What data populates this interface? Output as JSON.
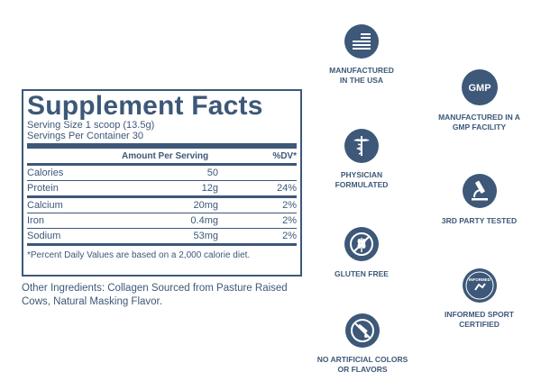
{
  "facts": {
    "title": "Supplement Facts",
    "serving_size": "Serving Size 1 scoop (13.5g)",
    "servings_per_container": "Servings Per Container 30",
    "header_amount": "Amount Per Serving",
    "header_dv": "%DV*",
    "rows": [
      {
        "name": "Calories",
        "amount": "50",
        "dv": ""
      },
      {
        "name": "Protein",
        "amount": "12g",
        "dv": "24%"
      },
      {
        "name": "Calcium",
        "amount": "20mg",
        "dv": "2%"
      },
      {
        "name": "Iron",
        "amount": "0.4mg",
        "dv": "2%"
      },
      {
        "name": "Sodium",
        "amount": "53mg",
        "dv": "2%"
      }
    ],
    "footnote": "*Percent Daily Values are based on a 2,000 calorie diet."
  },
  "other_ingredients": "Other Ingredients: Collagen Sourced from Pasture Raised Cows, Natural Masking Flavor.",
  "badges": {
    "usa": {
      "line1": "MANUFACTURED",
      "line2": "IN THE USA"
    },
    "gmp": {
      "icon_text": "GMP",
      "line1": "MANUFACTURED IN A",
      "line2": "GMP FACILITY"
    },
    "physician": {
      "line1": "PHYSICIAN",
      "line2": "FORMULATED"
    },
    "tested": {
      "line1": "3RD PARTY TESTED"
    },
    "gluten": {
      "line1": "GLUTEN FREE"
    },
    "informed": {
      "icon_text": "INFORMED",
      "line1": "INFORMED SPORT",
      "line2": "CERTIFIED"
    },
    "artificial": {
      "line1": "NO ARTIFICIAL COLORS",
      "line2": "OR FLAVORS"
    }
  },
  "colors": {
    "brand": "#3d5878"
  }
}
